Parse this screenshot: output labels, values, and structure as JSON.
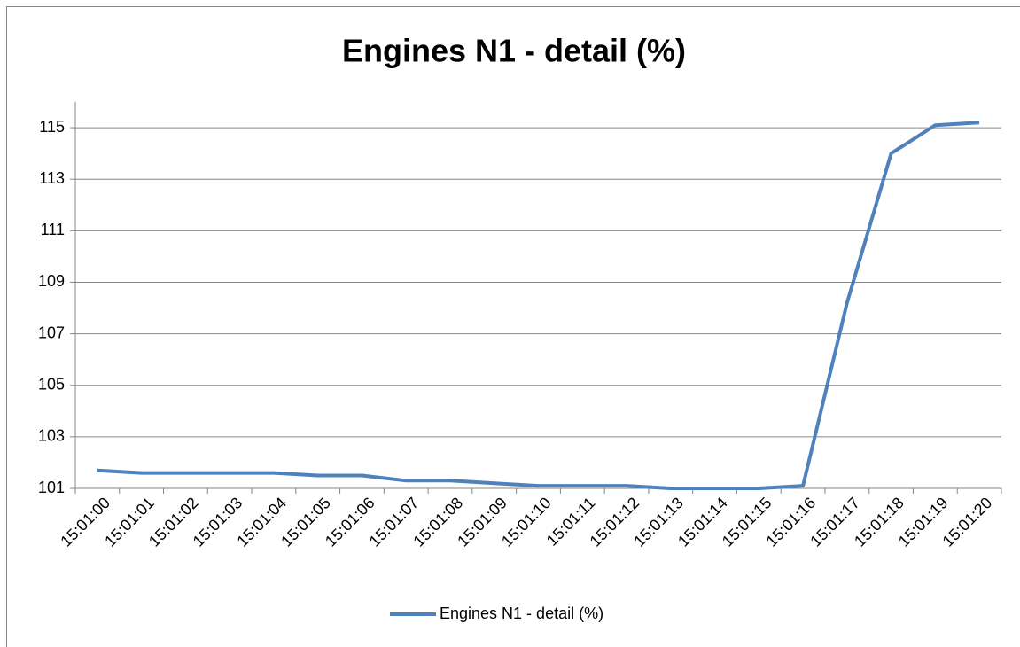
{
  "chart_data": {
    "type": "line",
    "title": "Engines N1 - detail (%)",
    "categories": [
      "15:01:00",
      "15:01:01",
      "15:01:02",
      "15:01:03",
      "15:01:04",
      "15:01:05",
      "15:01:06",
      "15:01:07",
      "15:01:08",
      "15:01:09",
      "15:01:10",
      "15:01:11",
      "15:01:12",
      "15:01:13",
      "15:01:14",
      "15:01:15",
      "15:01:16",
      "15:01:17",
      "15:01:18",
      "15:01:19",
      "15:01:20"
    ],
    "series": [
      {
        "name": "Engines N1 - detail (%)",
        "color": "#4f81bd",
        "values": [
          101.7,
          101.6,
          101.6,
          101.6,
          101.6,
          101.5,
          101.5,
          101.3,
          101.3,
          101.2,
          101.1,
          101.1,
          101.1,
          101.0,
          101.0,
          101.0,
          101.1,
          108.2,
          114.0,
          115.1,
          115.2
        ]
      }
    ],
    "ylim": [
      101,
      116
    ],
    "yticks": [
      101,
      103,
      105,
      107,
      109,
      111,
      113,
      115
    ],
    "grid": true,
    "legend": "bottom"
  }
}
